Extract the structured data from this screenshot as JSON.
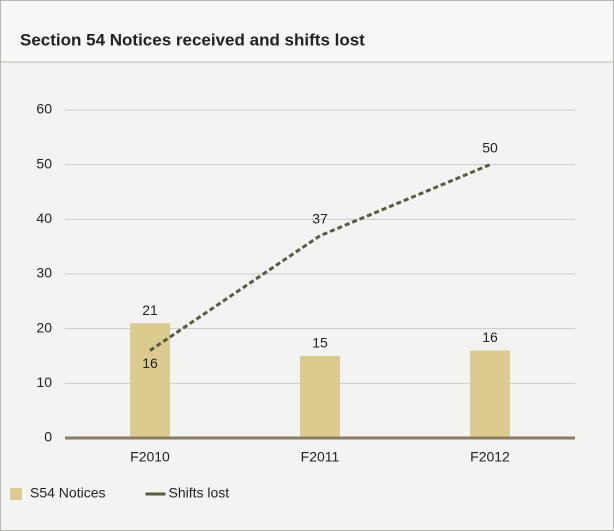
{
  "chart_data": {
    "type": "bar",
    "title": "Section 54 Notices received and shifts lost",
    "categories": [
      "F2010",
      "F2011",
      "F2012"
    ],
    "series": [
      {
        "name": "S54 Notices",
        "type": "bar",
        "color": "#dccb8f",
        "values": [
          21,
          15,
          16
        ]
      },
      {
        "name": "Shifts lost",
        "type": "line",
        "color": "#5b5a40",
        "dashed": true,
        "values": [
          16,
          37,
          50
        ]
      }
    ],
    "ylim": [
      0,
      60
    ],
    "yticks": [
      0,
      10,
      20,
      30,
      40,
      50,
      60
    ],
    "grid": true,
    "legend": "bottom"
  }
}
